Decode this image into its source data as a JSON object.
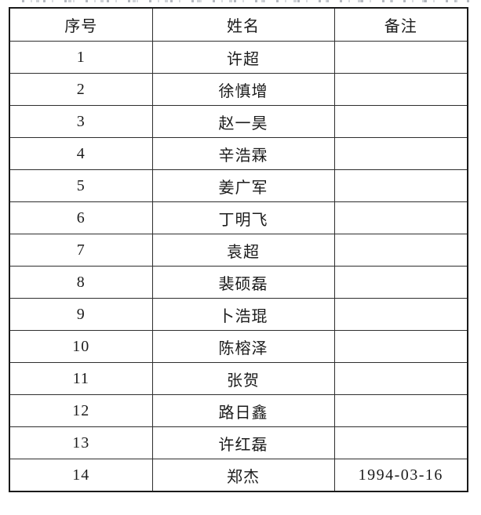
{
  "page": {
    "background": "#ffffff",
    "text_color": "#1c1c1c",
    "border_color": "#1a1a1a"
  },
  "table": {
    "headers": [
      "序号",
      "姓名",
      "备注"
    ],
    "rows": [
      {
        "no": "1",
        "name": "许超",
        "remark": ""
      },
      {
        "no": "2",
        "name": "徐慎增",
        "remark": ""
      },
      {
        "no": "3",
        "name": "赵一昊",
        "remark": ""
      },
      {
        "no": "4",
        "name": "辛浩霖",
        "remark": ""
      },
      {
        "no": "5",
        "name": "姜广军",
        "remark": ""
      },
      {
        "no": "6",
        "name": "丁明飞",
        "remark": ""
      },
      {
        "no": "7",
        "name": "袁超",
        "remark": ""
      },
      {
        "no": "8",
        "name": "裴硕磊",
        "remark": ""
      },
      {
        "no": "9",
        "name": "卜浩琨",
        "remark": ""
      },
      {
        "no": "10",
        "name": "陈榕泽",
        "remark": ""
      },
      {
        "no": "11",
        "name": "张贺",
        "remark": ""
      },
      {
        "no": "12",
        "name": "路日鑫",
        "remark": ""
      },
      {
        "no": "13",
        "name": "许红磊",
        "remark": ""
      },
      {
        "no": "14",
        "name": "郑杰",
        "remark": "1994-03-16"
      }
    ]
  }
}
